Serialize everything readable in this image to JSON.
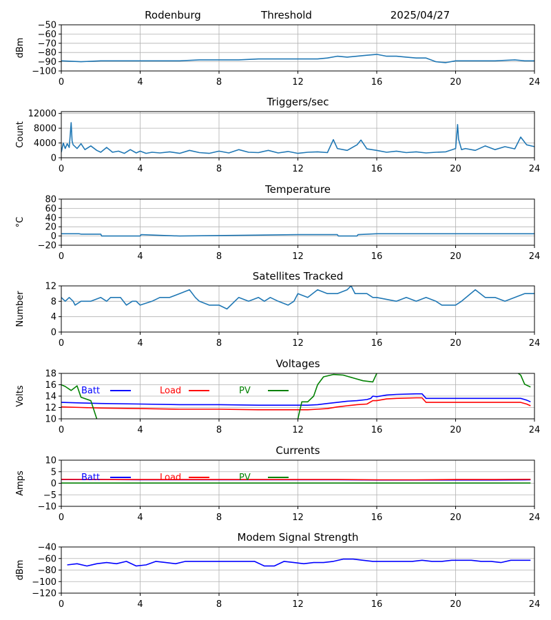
{
  "header": {
    "station": "Rodenburg",
    "center_title": "Threshold",
    "date": "2025/04/27"
  },
  "colors": {
    "default_series": "#1f77b4",
    "batt": "#0000ff",
    "load": "#ff0000",
    "pv": "#008000",
    "grid": "#b0b0b0"
  },
  "chart_data": [
    {
      "id": "threshold",
      "type": "line",
      "title": "",
      "ylabel": "dBm",
      "xlim": [
        0,
        24
      ],
      "ylim": [
        -100,
        -50
      ],
      "xticks": [
        0,
        4,
        8,
        12,
        16,
        20,
        24
      ],
      "yticks": [
        -100,
        -90,
        -80,
        -70,
        -60,
        -50
      ],
      "grid": true,
      "series": [
        {
          "color": "#1f77b4",
          "x": [
            0,
            1,
            2,
            3,
            4,
            5,
            6,
            7,
            8,
            9,
            10,
            11,
            12,
            13,
            13.5,
            14,
            14.5,
            15,
            15.5,
            16,
            16.5,
            17,
            17.5,
            18,
            18.5,
            19,
            19.5,
            20,
            21,
            22,
            23,
            23.5,
            24
          ],
          "y": [
            -89,
            -90,
            -89,
            -89,
            -89,
            -89,
            -89,
            -88,
            -88,
            -88,
            -87,
            -87,
            -87,
            -87,
            -86,
            -84,
            -85,
            -84,
            -83,
            -82,
            -84,
            -84,
            -85,
            -86,
            -86,
            -90,
            -91,
            -89,
            -89,
            -89,
            -88,
            -89,
            -89
          ]
        }
      ]
    },
    {
      "id": "triggers",
      "type": "line",
      "title": "Triggers/sec",
      "ylabel": "Count",
      "xlim": [
        0,
        24
      ],
      "ylim": [
        0,
        12500
      ],
      "xticks": [
        0,
        4,
        8,
        12,
        16,
        20,
        24
      ],
      "yticks": [
        0,
        4000,
        8000,
        12000
      ],
      "grid": true,
      "series": [
        {
          "color": "#1f77b4",
          "x": [
            0,
            0.1,
            0.2,
            0.3,
            0.4,
            0.45,
            0.5,
            0.55,
            0.6,
            0.8,
            1.0,
            1.2,
            1.5,
            1.8,
            2.0,
            2.3,
            2.6,
            2.9,
            3.2,
            3.5,
            3.8,
            4.0,
            4.3,
            4.6,
            5.0,
            5.5,
            6.0,
            6.5,
            7.0,
            7.5,
            8.0,
            8.5,
            9.0,
            9.5,
            10.0,
            10.5,
            11.0,
            11.5,
            12.0,
            12.5,
            13.0,
            13.5,
            13.8,
            14.0,
            14.5,
            15.0,
            15.2,
            15.5,
            16.0,
            16.5,
            17.0,
            17.5,
            18.0,
            18.5,
            19.0,
            19.5,
            20.0,
            20.1,
            20.15,
            20.3,
            20.5,
            21.0,
            21.5,
            22.0,
            22.5,
            23.0,
            23.3,
            23.6,
            24.0
          ],
          "y": [
            1500,
            4000,
            2500,
            3800,
            2800,
            6000,
            9500,
            4500,
            3500,
            2500,
            3800,
            2200,
            3200,
            2000,
            1500,
            2800,
            1500,
            1800,
            1200,
            2200,
            1300,
            1800,
            1200,
            1500,
            1300,
            1600,
            1200,
            2000,
            1400,
            1200,
            1800,
            1300,
            2200,
            1500,
            1400,
            2000,
            1300,
            1700,
            1200,
            1500,
            1600,
            1400,
            4900,
            2500,
            2000,
            3500,
            4800,
            2400,
            2000,
            1500,
            1800,
            1400,
            1600,
            1300,
            1500,
            1600,
            2500,
            9000,
            5000,
            2200,
            2500,
            2000,
            3200,
            2200,
            3000,
            2400,
            5600,
            3500,
            3000
          ]
        }
      ]
    },
    {
      "id": "temperature",
      "type": "line",
      "title": "Temperature",
      "ylabel": "°C",
      "xlim": [
        0,
        24
      ],
      "ylim": [
        -20,
        80
      ],
      "xticks": [
        0,
        4,
        8,
        12,
        16,
        20,
        24
      ],
      "yticks": [
        -20,
        0,
        20,
        40,
        60,
        80
      ],
      "grid": true,
      "series": [
        {
          "color": "#1f77b4",
          "x": [
            0,
            0.9,
            1.0,
            2.0,
            2.05,
            4.0,
            4.05,
            6.0,
            12.0,
            14.0,
            14.05,
            15.0,
            15.05,
            16.0,
            20.0,
            24.0
          ],
          "y": [
            5,
            5,
            4,
            4,
            0,
            0,
            3,
            0,
            3,
            3,
            0,
            0,
            3,
            5,
            5,
            5
          ]
        }
      ]
    },
    {
      "id": "satellites",
      "type": "line",
      "title": "Satellites Tracked",
      "ylabel": "Number",
      "xlim": [
        0,
        24
      ],
      "ylim": [
        0,
        12
      ],
      "xticks": [
        0,
        4,
        8,
        12,
        16,
        20,
        24
      ],
      "yticks": [
        0,
        4,
        8,
        12
      ],
      "grid": true,
      "series": [
        {
          "color": "#1f77b4",
          "x": [
            0,
            0.2,
            0.4,
            0.6,
            0.7,
            1.0,
            1.5,
            2.0,
            2.3,
            2.5,
            3.0,
            3.3,
            3.6,
            3.8,
            4.0,
            4.6,
            5.0,
            5.5,
            6.0,
            6.5,
            6.8,
            7.0,
            7.5,
            8.0,
            8.4,
            8.8,
            9.0,
            9.5,
            10.0,
            10.3,
            10.6,
            11.0,
            11.5,
            11.8,
            12.0,
            12.5,
            13.0,
            13.5,
            14.0,
            14.5,
            14.7,
            14.9,
            15.5,
            15.8,
            16.0,
            17.0,
            17.5,
            18.0,
            18.5,
            19.0,
            19.3,
            20.0,
            20.3,
            21.0,
            21.5,
            22.0,
            22.5,
            23.0,
            23.5,
            24.0
          ],
          "y": [
            9,
            8,
            9,
            8,
            7,
            8,
            8,
            9,
            8,
            9,
            9,
            7,
            8,
            8,
            7,
            8,
            9,
            9,
            10,
            11,
            9,
            8,
            7,
            7,
            6,
            8,
            9,
            8,
            9,
            8,
            9,
            8,
            7,
            8,
            10,
            9,
            11,
            10,
            10,
            11,
            12,
            10,
            10,
            9,
            9,
            8,
            9,
            8,
            9,
            8,
            7,
            7,
            8,
            11,
            9,
            9,
            8,
            9,
            10,
            10
          ]
        }
      ]
    },
    {
      "id": "voltages",
      "type": "line",
      "title": "Voltages",
      "ylabel": "Volts",
      "xlim": [
        0,
        24
      ],
      "ylim": [
        10,
        18
      ],
      "xticks": [
        0,
        4,
        8,
        12,
        16,
        20,
        24
      ],
      "yticks": [
        10,
        12,
        14,
        16,
        18
      ],
      "grid": true,
      "legend": [
        {
          "label": "Batt",
          "color": "#0000ff"
        },
        {
          "label": "Load",
          "color": "#ff0000"
        },
        {
          "label": "PV",
          "color": "#008000"
        }
      ],
      "series": [
        {
          "name": "Batt",
          "color": "#0000ff",
          "x": [
            0,
            1,
            2,
            4,
            6,
            8,
            10,
            12,
            12.5,
            13,
            13.5,
            14,
            14.5,
            15,
            15.5,
            15.7,
            15.8,
            16,
            16.5,
            17,
            18,
            18.3,
            18.5,
            20,
            22,
            23.3,
            23.6,
            23.8
          ],
          "y": [
            12.9,
            12.8,
            12.7,
            12.6,
            12.5,
            12.5,
            12.4,
            12.4,
            12.4,
            12.5,
            12.7,
            12.9,
            13.1,
            13.2,
            13.4,
            13.6,
            14.0,
            13.9,
            14.2,
            14.3,
            14.4,
            14.4,
            13.6,
            13.6,
            13.6,
            13.6,
            13.3,
            13.0
          ]
        },
        {
          "name": "Load",
          "color": "#ff0000",
          "x": [
            0,
            1,
            2,
            4,
            6,
            8,
            10,
            12,
            12.5,
            13,
            13.5,
            14,
            14.5,
            15,
            15.5,
            15.8,
            16,
            16.5,
            17,
            18,
            18.3,
            18.5,
            20,
            22,
            23.3,
            23.6,
            23.8
          ],
          "y": [
            12.1,
            12.0,
            11.9,
            11.8,
            11.7,
            11.7,
            11.6,
            11.6,
            11.6,
            11.7,
            11.8,
            12.1,
            12.3,
            12.5,
            12.6,
            13.2,
            13.2,
            13.5,
            13.6,
            13.7,
            13.7,
            12.9,
            12.9,
            12.9,
            12.9,
            12.6,
            12.3
          ]
        },
        {
          "name": "PV",
          "color": "#008000",
          "x": [
            0,
            0.2,
            0.5,
            0.8,
            1.0,
            1.5,
            1.8
          ],
          "y": [
            16.0,
            15.7,
            15.0,
            15.8,
            13.8,
            13.2,
            10.0
          ]
        },
        {
          "name": "PV",
          "color": "#008000",
          "x": [
            12.0,
            12.2,
            12.5,
            12.8,
            13.0,
            13.3,
            13.8,
            14.3,
            14.8,
            15.3,
            15.8,
            16.0,
            16.1
          ],
          "y": [
            10.0,
            13.0,
            13.0,
            14.0,
            16.0,
            17.4,
            17.8,
            17.7,
            17.2,
            16.7,
            16.5,
            18.0,
            18.2
          ]
        },
        {
          "name": "PV",
          "color": "#008000",
          "x": [
            23.1,
            23.3,
            23.5,
            23.8
          ],
          "y": [
            18.2,
            17.7,
            16.1,
            15.6
          ]
        }
      ]
    },
    {
      "id": "currents",
      "type": "line",
      "title": "Currents",
      "ylabel": "Amps",
      "xlim": [
        0,
        24
      ],
      "ylim": [
        -10,
        10
      ],
      "xticks": [
        0,
        4,
        8,
        12,
        16,
        20,
        24
      ],
      "yticks": [
        -10,
        -5,
        0,
        5,
        10
      ],
      "grid": true,
      "legend": [
        {
          "label": "Batt",
          "color": "#0000ff"
        },
        {
          "label": "Load",
          "color": "#ff0000"
        },
        {
          "label": "PV",
          "color": "#008000"
        }
      ],
      "series": [
        {
          "name": "Batt",
          "color": "#0000ff",
          "x": [
            0,
            2,
            4,
            6,
            8,
            10,
            12,
            14,
            16,
            18,
            20,
            22,
            23.8
          ],
          "y": [
            1.6,
            1.6,
            1.5,
            1.5,
            1.5,
            1.5,
            1.5,
            1.5,
            1.4,
            1.4,
            1.4,
            1.4,
            1.5
          ]
        },
        {
          "name": "Load",
          "color": "#ff0000",
          "x": [
            0,
            2,
            4,
            6,
            8,
            10,
            12,
            14,
            16,
            18,
            20,
            22,
            23.8
          ],
          "y": [
            1.7,
            1.6,
            1.6,
            1.6,
            1.6,
            1.6,
            1.6,
            1.6,
            1.5,
            1.5,
            1.6,
            1.6,
            1.7
          ]
        },
        {
          "name": "PV",
          "color": "#008000",
          "x": [
            0,
            23.8
          ],
          "y": [
            0.1,
            0.1
          ]
        }
      ]
    },
    {
      "id": "modem",
      "type": "line",
      "title": "Modem Signal Strength",
      "ylabel": "dBm",
      "xlim": [
        0,
        24
      ],
      "ylim": [
        -120,
        -40
      ],
      "xticks": [
        0,
        4,
        8,
        12,
        16,
        20,
        24
      ],
      "yticks": [
        -120,
        -100,
        -80,
        -60,
        -40
      ],
      "grid": true,
      "series": [
        {
          "color": "#0000ff",
          "x": [
            0.3,
            0.8,
            1.3,
            1.8,
            2.3,
            2.8,
            3.3,
            3.8,
            4.3,
            4.8,
            5.3,
            5.8,
            6.3,
            6.8,
            7.3,
            7.8,
            8.3,
            8.8,
            9.3,
            9.8,
            10.3,
            10.8,
            11.3,
            11.8,
            12.3,
            12.8,
            13.3,
            13.8,
            14.3,
            14.8,
            15.3,
            15.8,
            16.3,
            16.8,
            17.3,
            17.8,
            18.3,
            18.8,
            19.3,
            19.8,
            20.3,
            20.8,
            21.3,
            21.8,
            22.3,
            22.8,
            23.3,
            23.8
          ],
          "y": [
            -71,
            -69,
            -73,
            -69,
            -67,
            -69,
            -65,
            -73,
            -71,
            -65,
            -67,
            -69,
            -65,
            -65,
            -65,
            -65,
            -65,
            -65,
            -65,
            -65,
            -73,
            -73,
            -65,
            -67,
            -69,
            -67,
            -67,
            -65,
            -61,
            -61,
            -63,
            -65,
            -65,
            -65,
            -65,
            -65,
            -63,
            -65,
            -65,
            -63,
            -63,
            -63,
            -65,
            -65,
            -67,
            -63,
            -63,
            -63
          ]
        }
      ]
    }
  ]
}
